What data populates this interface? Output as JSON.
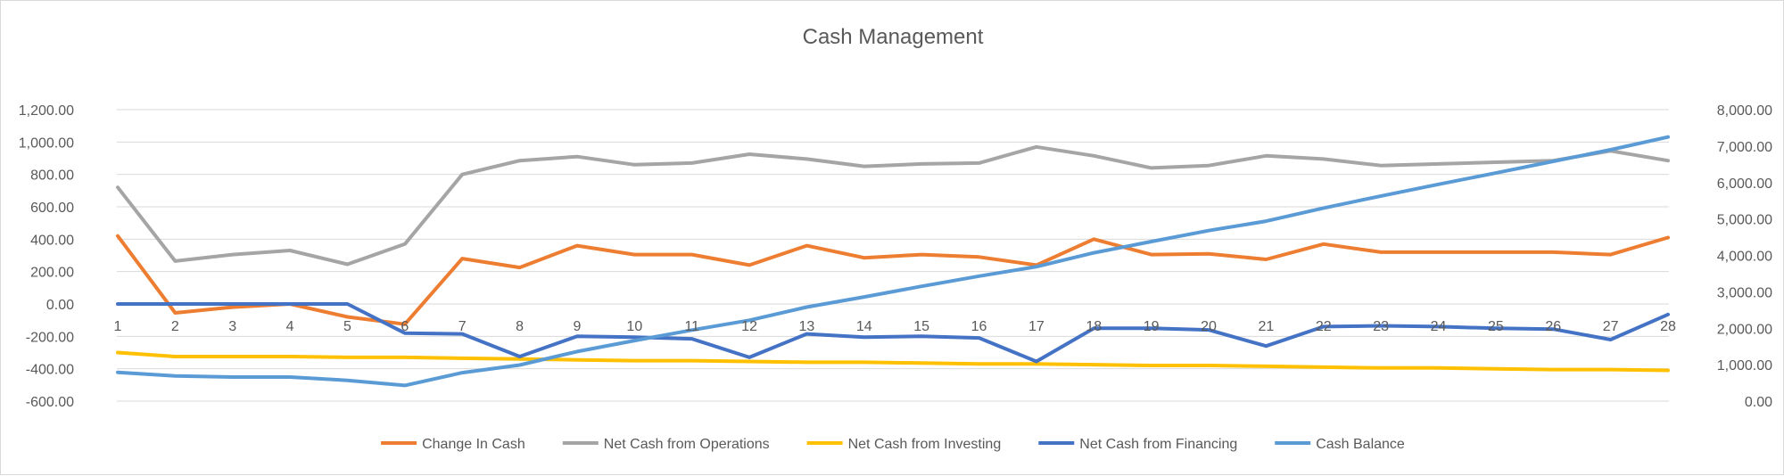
{
  "chart_data": {
    "type": "line",
    "title": "Cash Management",
    "x": [
      1,
      2,
      3,
      4,
      5,
      6,
      7,
      8,
      9,
      10,
      11,
      12,
      13,
      14,
      15,
      16,
      17,
      18,
      19,
      20,
      21,
      22,
      23,
      24,
      25,
      26,
      27,
      28
    ],
    "y_left": {
      "range": [
        -600,
        1200
      ],
      "ticks": [
        -600,
        -400,
        -200,
        0,
        200,
        400,
        600,
        800,
        1000,
        1200
      ],
      "tick_labels": [
        "-600.00",
        "-400.00",
        "-200.00",
        "0.00",
        "200.00",
        "400.00",
        "600.00",
        "800.00",
        "1,000.00",
        "1,200.00"
      ]
    },
    "y_right": {
      "range": [
        0,
        8000
      ],
      "ticks": [
        0,
        1000,
        2000,
        3000,
        4000,
        5000,
        6000,
        7000,
        8000
      ],
      "tick_labels": [
        "0.00",
        "1,000.00",
        "2,000.00",
        "3,000.00",
        "4,000.00",
        "5,000.00",
        "6,000.00",
        "7,000.00",
        "8,000.00"
      ]
    },
    "grid": true,
    "legend_position": "bottom",
    "series": [
      {
        "name": "Change In Cash",
        "axis": "left",
        "color": "#ED7D31",
        "values": [
          420,
          -55,
          -20,
          0,
          -80,
          -125,
          280,
          225,
          360,
          305,
          305,
          240,
          360,
          285,
          305,
          290,
          240,
          400,
          305,
          310,
          275,
          370,
          320,
          320,
          320,
          320,
          305,
          410
        ]
      },
      {
        "name": "Net Cash from Operations",
        "axis": "left",
        "color": "#A5A5A5",
        "values": [
          720,
          265,
          305,
          330,
          245,
          370,
          800,
          885,
          910,
          860,
          870,
          925,
          895,
          850,
          865,
          870,
          970,
          915,
          840,
          855,
          915,
          895,
          855,
          865,
          875,
          885,
          945,
          885
        ]
      },
      {
        "name": "Net Cash from Investing",
        "axis": "left",
        "color": "#FFC000",
        "values": [
          -300,
          -325,
          -325,
          -325,
          -330,
          -330,
          -335,
          -340,
          -345,
          -350,
          -350,
          -355,
          -360,
          -360,
          -365,
          -370,
          -370,
          -375,
          -380,
          -380,
          -385,
          -390,
          -395,
          -395,
          -400,
          -405,
          -405,
          -410
        ]
      },
      {
        "name": "Net Cash from Financing",
        "axis": "left",
        "color": "#4472C4",
        "values": [
          0,
          0,
          0,
          0,
          0,
          -180,
          -185,
          -325,
          -200,
          -205,
          -215,
          -330,
          -185,
          -205,
          -200,
          -210,
          -355,
          -150,
          -150,
          -160,
          -260,
          -140,
          -135,
          -140,
          -150,
          -155,
          -220,
          -65
        ]
      },
      {
        "name": "Cash Balance",
        "axis": "right",
        "color": "#5B9BD5",
        "values": [
          790,
          690,
          660,
          660,
          570,
          430,
          780,
          990,
          1360,
          1660,
          1950,
          2220,
          2580,
          2860,
          3150,
          3430,
          3690,
          4070,
          4380,
          4680,
          4940,
          5300,
          5630,
          5950,
          6260,
          6580,
          6900,
          7250
        ]
      }
    ]
  }
}
